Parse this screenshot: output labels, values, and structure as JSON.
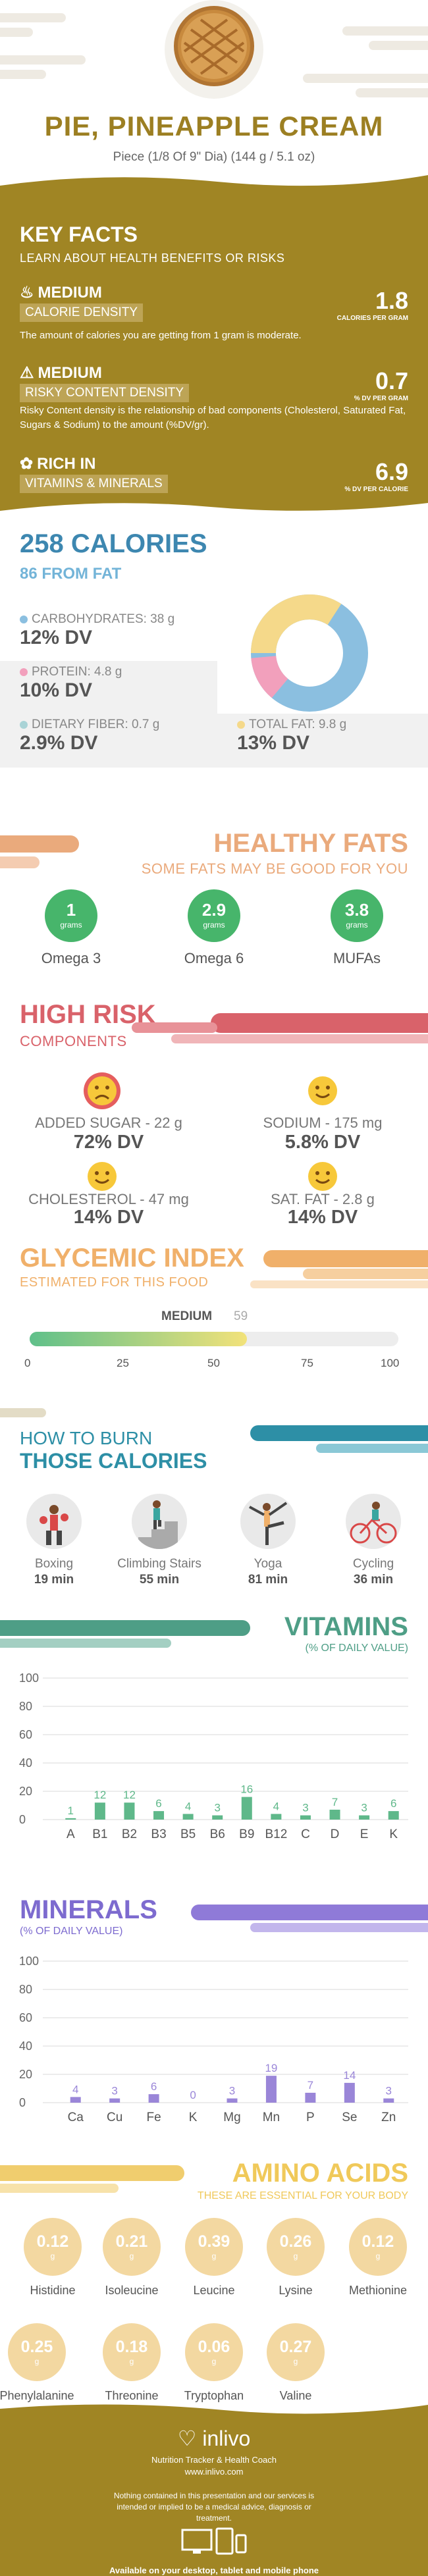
{
  "header": {
    "title": "PIE, PINEAPPLE CREAM",
    "serving": "Piece (1/8 Of 9\" Dia) (144 g / 5.1 oz)"
  },
  "key_facts": {
    "title": "KEY FACTS",
    "subtitle": "LEARN ABOUT HEALTH BENEFITS OR RISKS",
    "items": [
      {
        "level": "MEDIUM",
        "label": "CALORIE DENSITY",
        "value": "1.8",
        "unit": "CALORIES PER GRAM",
        "desc": "The amount of calories you are getting from 1 gram is moderate.",
        "icon": "flame-icon"
      },
      {
        "level": "MEDIUM",
        "label": "RISKY CONTENT DENSITY",
        "value": "0.7",
        "unit": "% DV PER GRAM",
        "desc": "Risky Content density is the relationship of bad components (Cholesterol, Saturated Fat, Sugars & Sodium) to the amount (%DV/gr).",
        "icon": "warning-icon"
      },
      {
        "level": "RICH  IN",
        "label": "VITAMINS & MINERALS",
        "value": "6.9",
        "unit": "% DV PER CALORIE",
        "desc": "",
        "icon": "leaf-icon"
      }
    ]
  },
  "calories": {
    "title": "258 CALORIES",
    "subtitle": "86 FROM FAT",
    "carbs": {
      "label": "CARBOHYDRATES: 38 g",
      "dv": "12% DV",
      "color": "#8bbfe0"
    },
    "protein": {
      "label": "PROTEIN: 4.8 g",
      "dv": "10% DV",
      "color": "#f2a0bc"
    },
    "fiber": {
      "label": "DIETARY FIBER: 0.7 g",
      "dv": "2.9% DV",
      "color": "#a9d3d6"
    },
    "fat": {
      "label": "TOTAL FAT: 9.8 g",
      "dv": "13% DV",
      "color": "#f5d98a"
    }
  },
  "healthy_fats": {
    "title": "HEALTHY FATS",
    "subtitle": "SOME FATS MAY BE GOOD FOR YOU",
    "unit": "grams",
    "items": [
      {
        "value": "1",
        "label": "Omega 3"
      },
      {
        "value": "2.9",
        "label": "Omega 6"
      },
      {
        "value": "3.8",
        "label": "MUFAs"
      }
    ]
  },
  "high_risk": {
    "title": "HIGH RISK",
    "subtitle": "COMPONENTS",
    "items": [
      {
        "label": "ADDED SUGAR - 22 g",
        "dv": "72% DV"
      },
      {
        "label": "SODIUM - 175 mg",
        "dv": "5.8% DV"
      },
      {
        "label": "CHOLESTEROL - 47 mg",
        "dv": "14% DV"
      },
      {
        "label": "SAT. FAT - 2.8 g",
        "dv": "14% DV"
      }
    ]
  },
  "glycemic": {
    "title": "GLYCEMIC INDEX",
    "subtitle": "ESTIMATED FOR THIS FOOD",
    "level": "MEDIUM",
    "value": "59",
    "ticks": [
      "0",
      "25",
      "50",
      "75",
      "100"
    ],
    "fill_value": 59
  },
  "burn": {
    "title1": "HOW TO BURN",
    "title2": "THOSE CALORIES",
    "items": [
      {
        "label": "Boxing",
        "time": "19 min",
        "icon": "boxing-icon"
      },
      {
        "label": "Climbing Stairs",
        "time": "55 min",
        "icon": "stairs-icon"
      },
      {
        "label": "Yoga",
        "time": "81 min",
        "icon": "yoga-icon"
      },
      {
        "label": "Cycling",
        "time": "36 min",
        "icon": "cycling-icon"
      }
    ]
  },
  "vitamins": {
    "title": "VITAMINS",
    "subtitle": "(% OF DAILY VALUE)",
    "chart_data": {
      "type": "bar",
      "categories": [
        "A",
        "B1",
        "B2",
        "B3",
        "B5",
        "B6",
        "B9",
        "B12",
        "C",
        "D",
        "E",
        "K"
      ],
      "values": [
        1,
        12,
        12,
        6,
        4,
        3,
        16,
        4,
        3,
        7,
        3,
        6
      ],
      "ylim": [
        0,
        100
      ],
      "yticks": [
        "0",
        "20",
        "40",
        "60",
        "80",
        "100"
      ],
      "color": "#5fb88a"
    }
  },
  "minerals": {
    "title": "MINERALS",
    "subtitle": "(% OF DAILY VALUE)",
    "chart_data": {
      "type": "bar",
      "categories": [
        "Ca",
        "Cu",
        "Fe",
        "K",
        "Mg",
        "Mn",
        "P",
        "Se",
        "Zn"
      ],
      "values": [
        4,
        3,
        6,
        0,
        3,
        19,
        7,
        14,
        3
      ],
      "ylim": [
        0,
        100
      ],
      "yticks": [
        "0",
        "20",
        "40",
        "60",
        "80",
        "100"
      ],
      "color": "#9a86d8"
    }
  },
  "amino": {
    "title": "AMINO ACIDS",
    "subtitle": "THESE ARE ESSENTIAL FOR YOUR BODY",
    "unit": "g",
    "items": [
      {
        "value": "0.12",
        "label": "Histidine"
      },
      {
        "value": "0.21",
        "label": "Isoleucine"
      },
      {
        "value": "0.39",
        "label": "Leucine"
      },
      {
        "value": "0.26",
        "label": "Lysine"
      },
      {
        "value": "0.12",
        "label": "Methionine"
      },
      {
        "value": "0.25",
        "label": "Phenylalanine"
      },
      {
        "value": "0.18",
        "label": "Threonine"
      },
      {
        "value": "0.06",
        "label": "Tryptophan"
      },
      {
        "value": "0.27",
        "label": "Valine"
      }
    ]
  },
  "footer": {
    "brand": "inlivo",
    "tagline": "Nutrition Tracker & Health Coach",
    "url": "www.inlivo.com",
    "disclaimer": "Nothing contained in this presentation and our services is intended or implied to be a medical advice, diagnosis or treatment.",
    "available": "Available on your desktop, tablet and mobile phone"
  }
}
